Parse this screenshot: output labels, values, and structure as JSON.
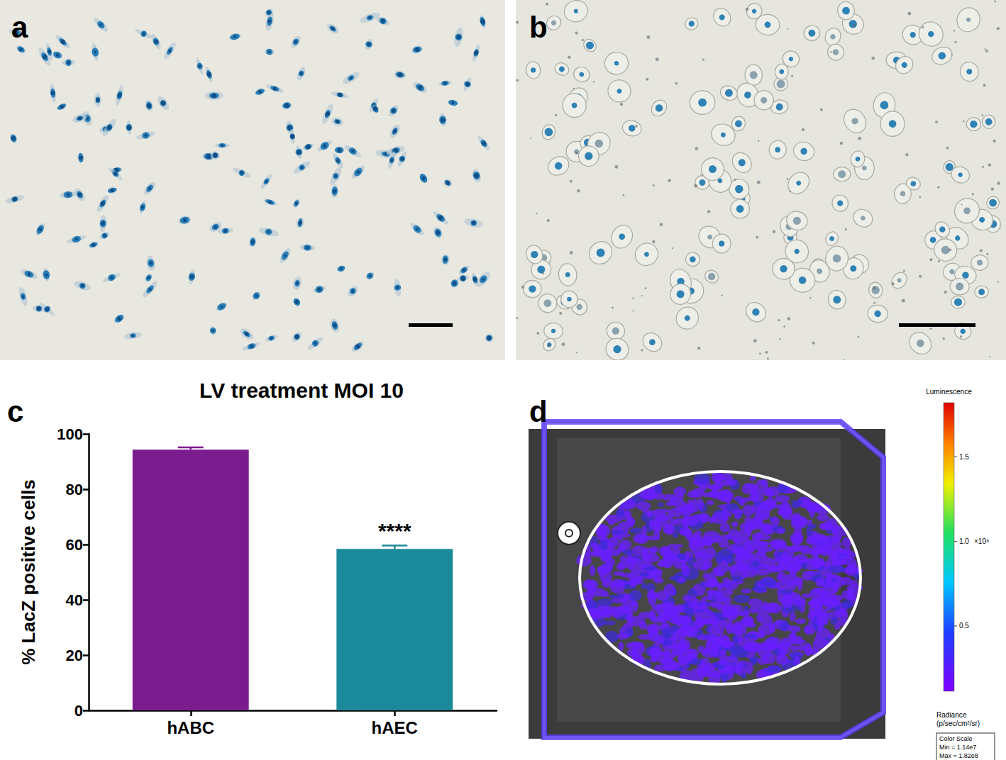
{
  "panel_labels": [
    "a",
    "b",
    "c",
    "d"
  ],
  "chart_data": {
    "type": "bar",
    "title": "LV treatment MOI 10",
    "ylabel": "% LacZ positive cells",
    "categories": [
      "hABC",
      "hAEC"
    ],
    "values": [
      94.3,
      58.4
    ],
    "errors": [
      0.8,
      1.2
    ],
    "colors": [
      "#7b1c8e",
      "#1b8a9a"
    ],
    "ylim": [
      0,
      100
    ],
    "yticks": [
      0,
      20,
      40,
      60,
      80,
      100
    ],
    "grid": false,
    "annotations": [
      {
        "category": "hAEC",
        "text": "****"
      }
    ]
  },
  "luminescence_panel": {
    "colorbar_title": "Luminescence",
    "range": [
      11400000,
      182000000
    ],
    "ticks": [
      {
        "value": 50000000,
        "label": "0.5"
      },
      {
        "value": 100000000,
        "label": "1.0"
      },
      {
        "value": 150000000,
        "label": "1.5"
      }
    ],
    "multiplier_label": "×10⁸",
    "unit_label": [
      "Radiance",
      "(p/sec/cm²/sr)"
    ],
    "scale_box": [
      "Color Scale",
      "Min = 1.14e7",
      "Max = 1.82e8"
    ]
  }
}
